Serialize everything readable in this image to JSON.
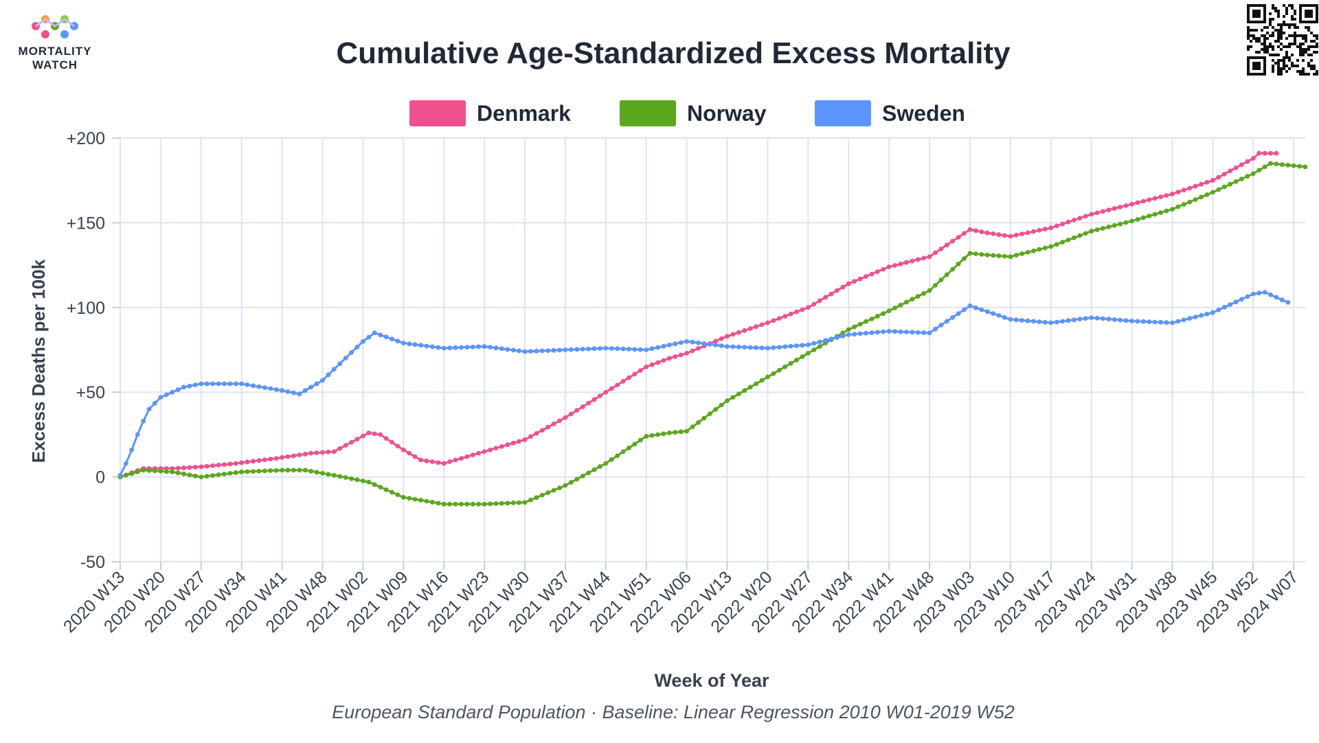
{
  "chart_data": {
    "type": "line",
    "title": "Cumulative Age-Standardized Excess Mortality",
    "subtitle": "European Standard Population · Baseline: Linear Regression 2010 W01-2019 W52",
    "xlabel": "Week of Year",
    "ylabel": "Excess Deaths per 100k",
    "ylim": [
      -50,
      200
    ],
    "y_ticks": [
      {
        "value": 200,
        "label": "+200"
      },
      {
        "value": 150,
        "label": "+150"
      },
      {
        "value": 100,
        "label": "+100"
      },
      {
        "value": 50,
        "label": "+50"
      },
      {
        "value": 0,
        "label": "0"
      },
      {
        "value": -50,
        "label": "-50"
      }
    ],
    "x_start": "2020 W13",
    "x_end": "2024 W09",
    "x_tick_labels": [
      "2020 W13",
      "2020 W20",
      "2020 W27",
      "2020 W34",
      "2020 W41",
      "2020 W48",
      "2021 W02",
      "2021 W09",
      "2021 W16",
      "2021 W23",
      "2021 W30",
      "2021 W37",
      "2021 W44",
      "2021 W51",
      "2022 W06",
      "2022 W13",
      "2022 W20",
      "2022 W27",
      "2022 W34",
      "2022 W41",
      "2022 W48",
      "2023 W03",
      "2023 W10",
      "2023 W17",
      "2023 W24",
      "2023 W31",
      "2023 W38",
      "2023 W45",
      "2023 W52",
      "2024 W07"
    ],
    "grid": true,
    "legend_position": "top-center",
    "series": [
      {
        "name": "Denmark",
        "color": "#f0508e",
        "points": [
          [
            "2020 W13",
            0
          ],
          [
            "2020 W17",
            5
          ],
          [
            "2020 W22",
            5
          ],
          [
            "2020 W27",
            6
          ],
          [
            "2020 W33",
            8
          ],
          [
            "2020 W40",
            11
          ],
          [
            "2020 W46",
            14
          ],
          [
            "2020 W50",
            15
          ],
          [
            "2021 W03",
            26
          ],
          [
            "2021 W05",
            25
          ],
          [
            "2021 W09",
            16
          ],
          [
            "2021 W12",
            10
          ],
          [
            "2021 W16",
            8
          ],
          [
            "2021 W23",
            15
          ],
          [
            "2021 W30",
            22
          ],
          [
            "2021 W37",
            35
          ],
          [
            "2021 W44",
            50
          ],
          [
            "2021 W51",
            65
          ],
          [
            "2022 W03",
            70
          ],
          [
            "2022 W06",
            73
          ],
          [
            "2022 W13",
            83
          ],
          [
            "2022 W20",
            91
          ],
          [
            "2022 W27",
            100
          ],
          [
            "2022 W34",
            114
          ],
          [
            "2022 W41",
            124
          ],
          [
            "2022 W48",
            130
          ],
          [
            "2023 W03",
            146
          ],
          [
            "2023 W06",
            144
          ],
          [
            "2023 W10",
            142
          ],
          [
            "2023 W17",
            147
          ],
          [
            "2023 W24",
            155
          ],
          [
            "2023 W31",
            161
          ],
          [
            "2023 W38",
            167
          ],
          [
            "2023 W45",
            175
          ],
          [
            "2023 W52",
            188
          ],
          [
            "2024 W01",
            191
          ],
          [
            "2024 W04",
            191
          ]
        ]
      },
      {
        "name": "Norway",
        "color": "#5aa81e",
        "points": [
          [
            "2020 W13",
            0
          ],
          [
            "2020 W17",
            4
          ],
          [
            "2020 W22",
            3
          ],
          [
            "2020 W27",
            0
          ],
          [
            "2020 W34",
            3
          ],
          [
            "2020 W41",
            4
          ],
          [
            "2020 W45",
            4
          ],
          [
            "2020 W50",
            1
          ],
          [
            "2021 W03",
            -3
          ],
          [
            "2021 W09",
            -12
          ],
          [
            "2021 W16",
            -16
          ],
          [
            "2021 W23",
            -16
          ],
          [
            "2021 W30",
            -15
          ],
          [
            "2021 W37",
            -5
          ],
          [
            "2021 W44",
            8
          ],
          [
            "2021 W51",
            24
          ],
          [
            "2022 W03",
            26
          ],
          [
            "2022 W06",
            27
          ],
          [
            "2022 W13",
            45
          ],
          [
            "2022 W20",
            59
          ],
          [
            "2022 W27",
            73
          ],
          [
            "2022 W34",
            87
          ],
          [
            "2022 W41",
            98
          ],
          [
            "2022 W48",
            110
          ],
          [
            "2023 W03",
            132
          ],
          [
            "2023 W06",
            131
          ],
          [
            "2023 W10",
            130
          ],
          [
            "2023 W17",
            136
          ],
          [
            "2023 W24",
            145
          ],
          [
            "2023 W31",
            151
          ],
          [
            "2023 W38",
            158
          ],
          [
            "2023 W45",
            168
          ],
          [
            "2023 W52",
            179
          ],
          [
            "2024 W03",
            185
          ],
          [
            "2024 W09",
            183
          ]
        ]
      },
      {
        "name": "Sweden",
        "color": "#5b95fb",
        "points": [
          [
            "2020 W13",
            1
          ],
          [
            "2020 W14",
            8
          ],
          [
            "2020 W15",
            16
          ],
          [
            "2020 W16",
            25
          ],
          [
            "2020 W17",
            33
          ],
          [
            "2020 W18",
            40
          ],
          [
            "2020 W20",
            47
          ],
          [
            "2020 W24",
            53
          ],
          [
            "2020 W27",
            55
          ],
          [
            "2020 W34",
            55
          ],
          [
            "2020 W41",
            51
          ],
          [
            "2020 W44",
            49
          ],
          [
            "2020 W48",
            57
          ],
          [
            "2021 W02",
            80
          ],
          [
            "2021 W04",
            85
          ],
          [
            "2021 W09",
            79
          ],
          [
            "2021 W16",
            76
          ],
          [
            "2021 W23",
            77
          ],
          [
            "2021 W30",
            74
          ],
          [
            "2021 W37",
            75
          ],
          [
            "2021 W44",
            76
          ],
          [
            "2021 W51",
            75
          ],
          [
            "2022 W06",
            80
          ],
          [
            "2022 W13",
            77
          ],
          [
            "2022 W20",
            76
          ],
          [
            "2022 W27",
            78
          ],
          [
            "2022 W34",
            84
          ],
          [
            "2022 W41",
            86
          ],
          [
            "2022 W48",
            85
          ],
          [
            "2023 W03",
            101
          ],
          [
            "2023 W10",
            93
          ],
          [
            "2023 W17",
            91
          ],
          [
            "2023 W24",
            94
          ],
          [
            "2023 W31",
            92
          ],
          [
            "2023 W38",
            91
          ],
          [
            "2023 W45",
            97
          ],
          [
            "2023 W52",
            108
          ],
          [
            "2024 W02",
            109
          ],
          [
            "2024 W06",
            103
          ]
        ]
      }
    ]
  },
  "logo": {
    "line1": "MORTALITY",
    "line2": "WATCH"
  }
}
